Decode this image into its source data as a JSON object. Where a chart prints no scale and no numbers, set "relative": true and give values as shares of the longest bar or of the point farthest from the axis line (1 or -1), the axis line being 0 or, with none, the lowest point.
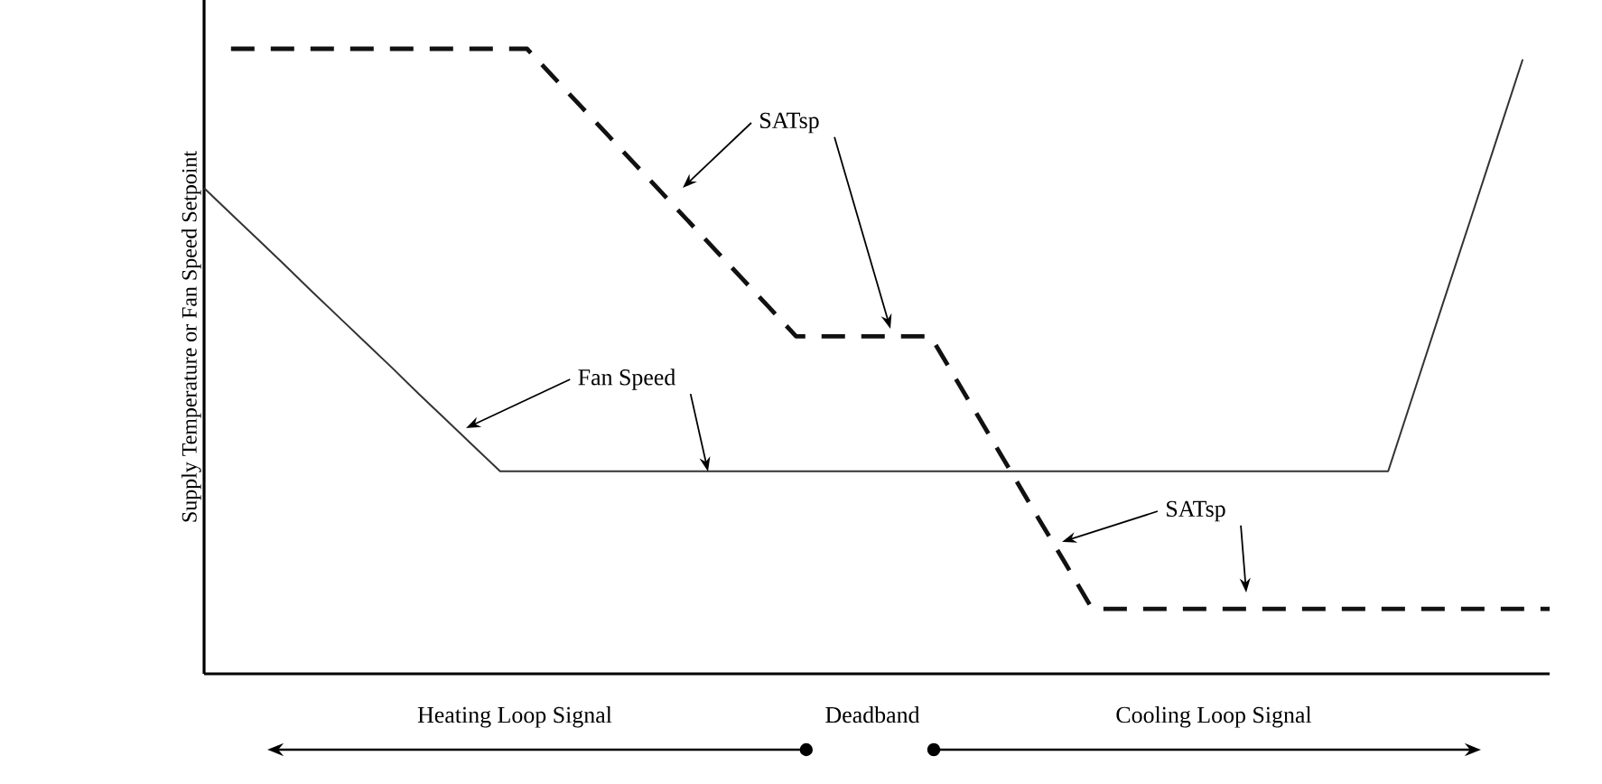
{
  "chart_data": {
    "type": "line",
    "relative": true,
    "ylabel": "Supply Temperature or Fan Speed Setpoint",
    "marker": "none",
    "categories": [
      null,
      null,
      null,
      null,
      null,
      null,
      null,
      null,
      null,
      null,
      null,
      null,
      null,
      null,
      null,
      null,
      null,
      null,
      null,
      null,
      null,
      null,
      null,
      null,
      null,
      null,
      null,
      null,
      null,
      null,
      null,
      null,
      null,
      null,
      null,
      null,
      null,
      null,
      null,
      null,
      null,
      null,
      null,
      null,
      null,
      null,
      null,
      null,
      null,
      null,
      null
    ],
    "series": [
      {
        "color": "#111111",
        "line_style": "dashed",
        "values": [
          null,
          1.0,
          1.0,
          1.0,
          1.0,
          1.0,
          1.0,
          1.0,
          1.0,
          1.0,
          1.0,
          1.0,
          1.0,
          0.954,
          0.908,
          0.862,
          0.816,
          0.77,
          0.724,
          0.678,
          0.632,
          0.586,
          0.54,
          0.54,
          0.54,
          0.54,
          0.54,
          0.54,
          0.467,
          0.395,
          0.322,
          0.249,
          0.177,
          0.104,
          0.104,
          0.104,
          0.104,
          0.104,
          0.104,
          0.104,
          0.104,
          0.104,
          0.104,
          0.104,
          0.104,
          0.104,
          0.104,
          0.104,
          0.104,
          0.104,
          0.104
        ]
      },
      {
        "color": "#333333",
        "line_style": "solid",
        "values": [
          0.777,
          0.736,
          0.695,
          0.654,
          0.612,
          0.571,
          0.53,
          0.489,
          0.447,
          0.406,
          0.365,
          0.324,
          0.324,
          0.324,
          0.324,
          0.324,
          0.324,
          0.324,
          0.324,
          0.324,
          0.324,
          0.324,
          0.324,
          0.324,
          0.324,
          0.324,
          0.324,
          0.324,
          0.324,
          0.324,
          0.324,
          0.324,
          0.324,
          0.324,
          0.324,
          0.324,
          0.324,
          0.324,
          0.324,
          0.324,
          0.324,
          0.324,
          0.324,
          0.324,
          0.324,
          0.456,
          0.588,
          0.719,
          0.851,
          0.983,
          null
        ]
      }
    ],
    "annotations": [
      "SATsp",
      "Fan Speed",
      "SATsp",
      "Heating Loop Signal",
      "Deadband",
      "Cooling Loop Signal"
    ]
  }
}
